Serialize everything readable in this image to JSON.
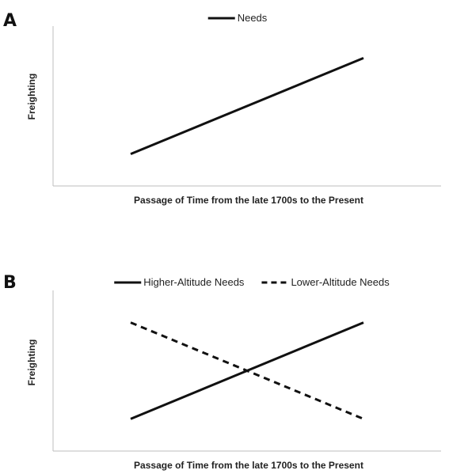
{
  "chart_data": [
    {
      "type": "line",
      "panel_label": "A",
      "title": "",
      "xlabel": "Passage of Time from the late 1700s to the Present",
      "ylabel": "Freighting",
      "xlim": [
        0,
        10
      ],
      "ylim": [
        0,
        10
      ],
      "grid": false,
      "legend_position": "top-center",
      "series": [
        {
          "name": "Needs",
          "style": "solid",
          "color": "#111111",
          "x": [
            2,
            8
          ],
          "y": [
            2,
            8
          ]
        }
      ]
    },
    {
      "type": "line",
      "panel_label": "B",
      "title": "",
      "xlabel": "Passage of Time from the late 1700s to the Present",
      "ylabel": "Freighting",
      "xlim": [
        0,
        10
      ],
      "ylim": [
        0,
        10
      ],
      "grid": false,
      "legend_position": "top-center",
      "series": [
        {
          "name": "Higher-Altitude Needs",
          "style": "solid",
          "color": "#111111",
          "x": [
            2,
            8
          ],
          "y": [
            2,
            8
          ]
        },
        {
          "name": "Lower-Altitude Needs",
          "style": "dashed",
          "color": "#111111",
          "x": [
            2,
            8
          ],
          "y": [
            8,
            2
          ]
        }
      ]
    }
  ]
}
